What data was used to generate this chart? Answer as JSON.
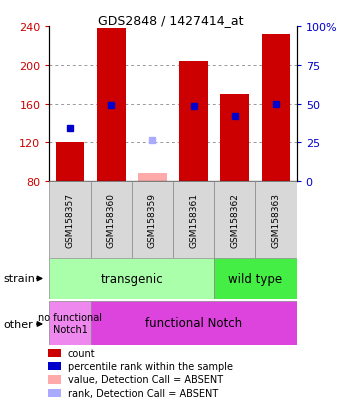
{
  "title": "GDS2848 / 1427414_at",
  "samples": [
    "GSM158357",
    "GSM158360",
    "GSM158359",
    "GSM158361",
    "GSM158362",
    "GSM158363"
  ],
  "bar_values": [
    120,
    238,
    80,
    204,
    170,
    232
  ],
  "bar_base": 80,
  "bar_colors_present": [
    "#cc0000",
    "#cc0000",
    null,
    "#cc0000",
    "#cc0000",
    "#cc0000"
  ],
  "bar_absent_values": [
    null,
    null,
    88,
    null,
    null,
    null
  ],
  "bar_absent_color": "#ffaaaa",
  "rank_values": [
    135,
    158,
    null,
    157,
    147,
    160
  ],
  "rank_absent_values": [
    null,
    null,
    122,
    null,
    null,
    null
  ],
  "rank_color_present": "#0000cc",
  "rank_color_absent": "#aaaaff",
  "ylim": [
    80,
    240
  ],
  "yticks_left": [
    80,
    120,
    160,
    200,
    240
  ],
  "yticks_right_labels": [
    "0",
    "25",
    "50",
    "75",
    "100%"
  ],
  "ylabel_left_color": "#cc0000",
  "ylabel_right_color": "#0000cc",
  "strain_transgenic_label": "transgenic",
  "strain_wildtype_label": "wild type",
  "strain_transgenic_color": "#aaffaa",
  "strain_wildtype_color": "#44ee44",
  "other_nofunc_label": "no functional\nNotch1",
  "other_func_label": "functional Notch",
  "other_nofunc_color": "#ee88ee",
  "other_func_color": "#dd44dd",
  "legend_items": [
    {
      "label": "count",
      "color": "#cc0000"
    },
    {
      "label": "percentile rank within the sample",
      "color": "#0000cc"
    },
    {
      "label": "value, Detection Call = ABSENT",
      "color": "#ffaaaa"
    },
    {
      "label": "rank, Detection Call = ABSENT",
      "color": "#aaaaff"
    }
  ]
}
